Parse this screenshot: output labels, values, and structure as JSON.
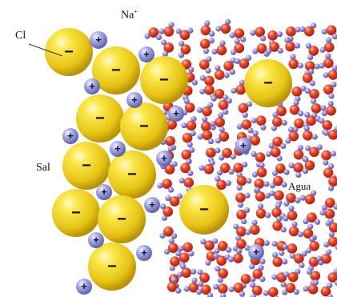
{
  "labels": {
    "cl": "Cl",
    "na": "Na",
    "na_charge": "+",
    "sal": "Sal",
    "agua": "Agua"
  },
  "ion_signs": {
    "chloride": "−",
    "sodium": "+"
  },
  "colors": {
    "chloride": "#f2d21a",
    "sodium": "#8f92d6",
    "oxygen": "#e23d1f",
    "hydrogen": "#8a82cf",
    "leader_line": "#333333"
  }
}
